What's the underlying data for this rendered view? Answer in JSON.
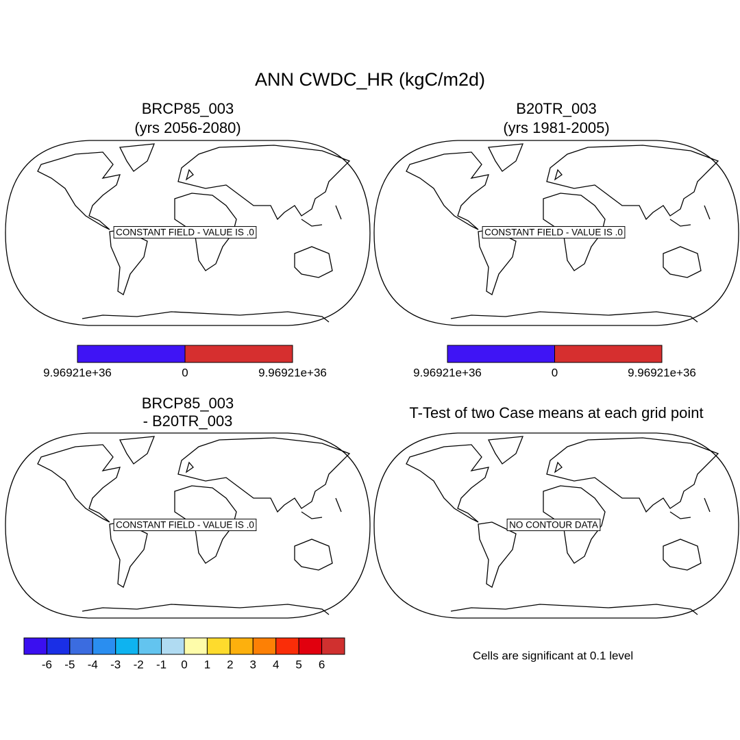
{
  "title": "ANN CWDC_HR (kgC/m2d)",
  "panels": [
    {
      "title": [
        "BRCP85_003",
        "(yrs 2056-2080)"
      ],
      "annotation": "CONSTANT FIELD - VALUE IS .0"
    },
    {
      "title": [
        "B20TR_003",
        "(yrs 1981-2005)"
      ],
      "annotation": "CONSTANT FIELD - VALUE IS .0"
    },
    {
      "title": [
        "BRCP85_003",
        "- B20TR_003"
      ],
      "annotation": "CONSTANT FIELD - VALUE IS .0"
    },
    {
      "title": [
        "T-Test of two Case means at each grid point"
      ],
      "annotation": "NO CONTOUR DATA"
    }
  ],
  "colorbars": [
    {
      "colors": [
        "#3f14f5",
        "#d62f2f"
      ],
      "labels": [
        "9.96921e+36",
        "0",
        "9.96921e+36"
      ]
    },
    {
      "colors": [
        "#3f14f5",
        "#d62f2f"
      ],
      "labels": [
        "9.96921e+36",
        "0",
        "9.96921e+36"
      ]
    },
    {
      "colors": [
        "#3a0ff0",
        "#1a2fe6",
        "#3b6ce0",
        "#2a8ef0",
        "#0eb3f0",
        "#63c4ef",
        "#b0dbf2",
        "#fefcaa",
        "#fedb2d",
        "#fdb00d",
        "#fd8005",
        "#fa2d08",
        "#e1000e",
        "#d0302f"
      ],
      "labels": [
        "-6",
        "-5",
        "-4",
        "-3",
        "-2",
        "-1",
        "0",
        "1",
        "2",
        "3",
        "4",
        "5",
        "6"
      ]
    }
  ],
  "note": "Cells are significant at 0.1 level"
}
